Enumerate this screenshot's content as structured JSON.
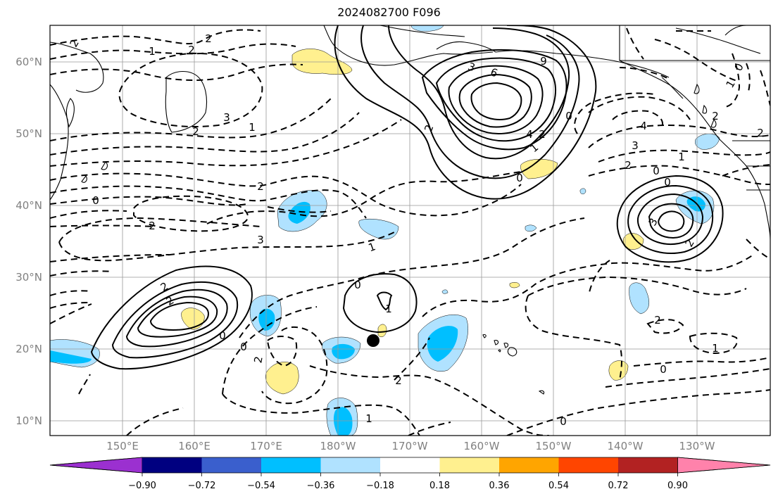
{
  "title": "2024082700 F096",
  "lat_labels": [
    "60°N",
    "50°N",
    "40°N",
    "30°N",
    "20°N",
    "10°N"
  ],
  "lon_labels": [
    "150°E",
    "160°E",
    "170°E",
    "180°W",
    "170°W",
    "160°W",
    "150°W",
    "140°W",
    "130°W"
  ],
  "colorbar": {
    "ticks": [
      "−0.90",
      "−0.72",
      "−0.54",
      "−0.36",
      "−0.18",
      "0.18",
      "0.36",
      "0.54",
      "0.72",
      "0.90"
    ],
    "colors": [
      "#9b30d0",
      "#000080",
      "#3a5fcd",
      "#00bfff",
      "#b0e2ff",
      "#ffffff",
      "#fff08f",
      "#ffa500",
      "#ff4500",
      "#b22222",
      "#ff82ab"
    ]
  },
  "contour_labels": {
    "positive": [
      "2",
      "3",
      "6",
      "9",
      "0",
      "4",
      "2",
      "1",
      "0",
      "3",
      "2",
      "0",
      "2",
      "2",
      "1",
      "0"
    ],
    "negative": [
      "2",
      "2",
      "1",
      "2",
      "2",
      "1",
      "3",
      "0",
      "2",
      "2",
      "3",
      "1",
      "0",
      "2",
      "2",
      "1",
      "0",
      "2",
      "1",
      "0",
      "2",
      "4",
      "3",
      "2",
      "1",
      "1",
      "0",
      "2",
      "0",
      "0"
    ]
  },
  "fill_colors": {
    "yellow": "#fff08f",
    "light_blue": "#b0e2ff",
    "blue": "#00bfff"
  }
}
